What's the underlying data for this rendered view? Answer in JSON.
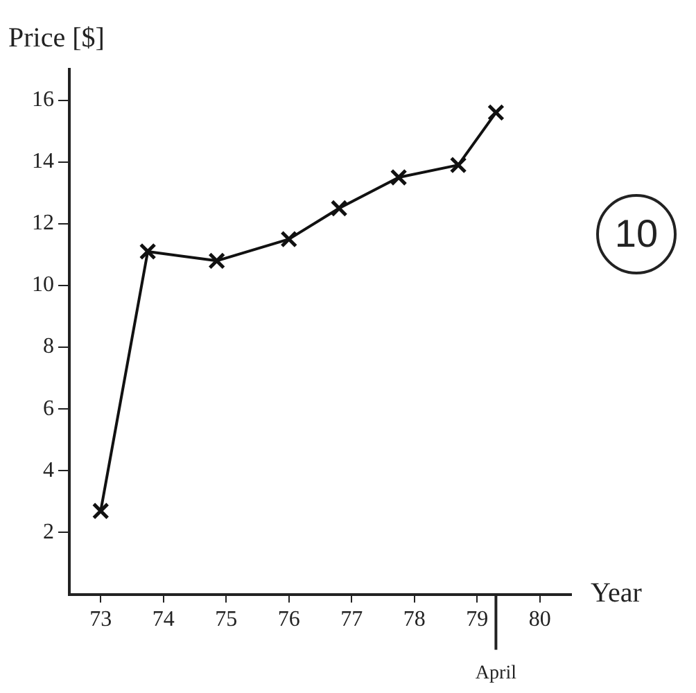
{
  "chart_data": {
    "type": "line",
    "ylabel": "Price [$]",
    "xlabel": "Year",
    "x": [
      73,
      73.75,
      74.85,
      76,
      76.8,
      77.75,
      78.7,
      79.3
    ],
    "values": [
      2.7,
      11.1,
      10.8,
      11.5,
      12.5,
      13.5,
      13.9,
      15.6
    ],
    "color": "#111111",
    "marker": "cross",
    "line_style": "solid",
    "grid": false,
    "legend": false,
    "xlim": [
      72.5,
      80.5
    ],
    "xticks": [
      73,
      74,
      75,
      76,
      77,
      78,
      79,
      80
    ],
    "ylim": [
      0,
      17
    ],
    "yticks": [
      2,
      4,
      6,
      8,
      10,
      12,
      14,
      16
    ],
    "ref_lines": [
      {
        "axis": "x",
        "value": 79.3,
        "label": "April"
      }
    ],
    "annotations": [
      "10"
    ]
  }
}
